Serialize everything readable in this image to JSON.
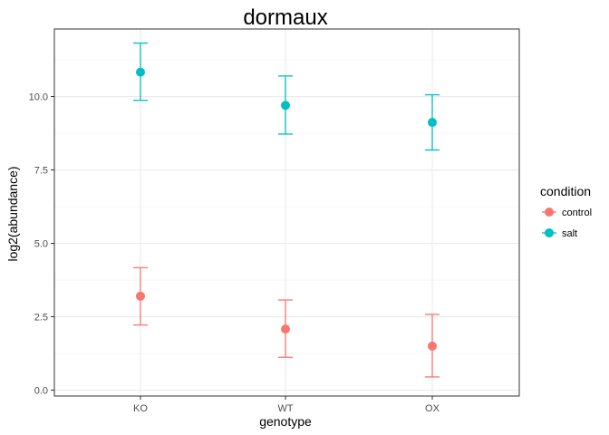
{
  "chart_data": {
    "type": "scatter",
    "title": "dormaux",
    "xlabel": "genotype",
    "ylabel": "log2(abundance)",
    "categories": [
      "KO",
      "WT",
      "OX"
    ],
    "ylim": [
      -0.2,
      12.3
    ],
    "yticks": [
      0.0,
      2.5,
      5.0,
      7.5,
      10.0
    ],
    "ytick_labels": [
      "0.0",
      "2.5",
      "5.0",
      "7.5",
      "10.0"
    ],
    "grid": true,
    "legend": {
      "title": "condition",
      "position": "right"
    },
    "series": [
      {
        "name": "control",
        "color": "#F8766D",
        "values": [
          3.2,
          2.08,
          1.5
        ],
        "lower": [
          2.22,
          1.12,
          0.45
        ],
        "upper": [
          4.17,
          3.07,
          2.58
        ]
      },
      {
        "name": "salt",
        "color": "#00BFC4",
        "values": [
          10.83,
          9.7,
          9.12
        ],
        "lower": [
          9.87,
          8.72,
          8.18
        ],
        "upper": [
          11.82,
          10.7,
          10.06
        ]
      }
    ]
  }
}
